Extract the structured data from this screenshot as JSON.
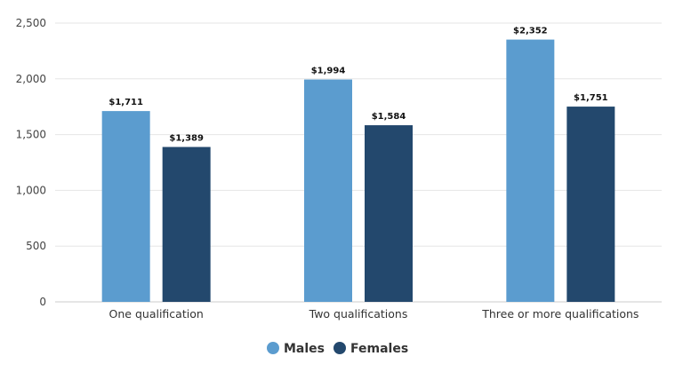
{
  "chart_data": {
    "type": "bar",
    "title": "",
    "xlabel": "",
    "ylabel": "",
    "categories": [
      "One qualification",
      "Two qualifications",
      "Three or more qualifications"
    ],
    "series": [
      {
        "name": "Males",
        "color": "#5b9ccf",
        "values": [
          1711,
          1994,
          2352
        ],
        "labels": [
          "$1,711",
          "$1,994",
          "$2,352"
        ]
      },
      {
        "name": "Females",
        "color": "#23486d",
        "values": [
          1389,
          1584,
          1751
        ],
        "labels": [
          "$1,389",
          "$1,584",
          "$1,751"
        ]
      }
    ],
    "ylim": [
      0,
      2500
    ],
    "yticks": [
      0,
      500,
      1000,
      1500,
      2000,
      2500
    ],
    "ytick_labels": [
      "0",
      "500",
      "1,000",
      "1,500",
      "2,000",
      "2,500"
    ],
    "grid": true,
    "legend_position": "bottom-center"
  }
}
